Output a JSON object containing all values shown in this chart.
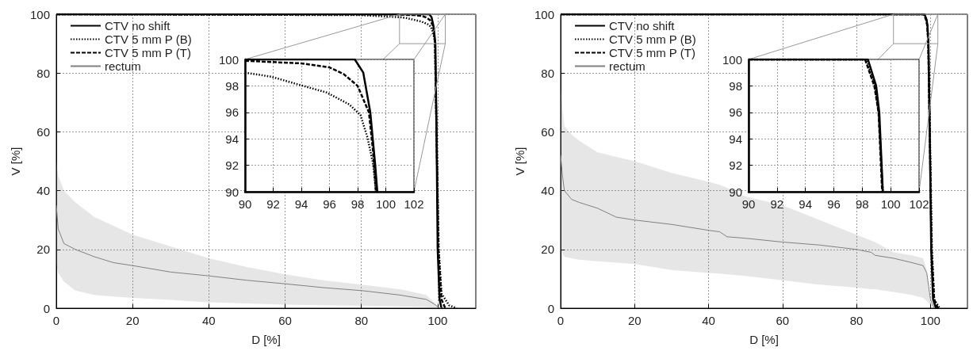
{
  "chart_data": [
    {
      "type": "line",
      "xlabel": "D [%]",
      "ylabel": "V [%]",
      "xlim": [
        0,
        110
      ],
      "ylim": [
        0,
        100
      ],
      "xticks": [
        0,
        20,
        40,
        60,
        80,
        100
      ],
      "yticks": [
        0,
        20,
        40,
        60,
        80,
        100
      ],
      "grid": true,
      "legend": "top left",
      "series": [
        {
          "name": "CTV no shift",
          "color": "#000000",
          "line_style": "solid",
          "x": [
            0,
            97.8,
            98.4,
            98.9,
            99.25,
            99.4,
            99.7,
            100,
            100.5,
            101
          ],
          "values": [
            100,
            100,
            99,
            96,
            92,
            90,
            60,
            20,
            3,
            0
          ]
        },
        {
          "name": "CTV 5 mm P (B)",
          "color": "#000000",
          "line_style": "dotted",
          "x": [
            0,
            80,
            90,
            91.85,
            93.8,
            95.8,
            97.4,
            98.2,
            98.7,
            99.1,
            99.3,
            99.7,
            100.3,
            101,
            103,
            105
          ],
          "values": [
            100,
            99.7,
            99,
            98.7,
            98.1,
            97.5,
            96.6,
            95.8,
            94.1,
            92.1,
            90,
            60,
            20,
            5,
            1,
            0
          ]
        },
        {
          "name": "CTV 5 mm P (T)",
          "color": "#000000",
          "line_style": "dashed",
          "x": [
            0,
            90,
            94,
            96,
            97,
            98,
            98.8,
            99.1,
            99.3,
            99.7,
            100.2,
            101,
            102
          ],
          "values": [
            100,
            99.9,
            99.7,
            99.4,
            98.9,
            98,
            96,
            93,
            90,
            60,
            20,
            3,
            0
          ]
        },
        {
          "name": "rectum",
          "color": "#808080",
          "line_style": "solid",
          "x": [
            0,
            0.5,
            2,
            5,
            10,
            15,
            20,
            30,
            40,
            50,
            60,
            70,
            80,
            90,
            97,
            99,
            100,
            101
          ],
          "values": [
            35,
            27,
            22,
            20,
            17.5,
            15.5,
            14.5,
            12.3,
            11,
            9.5,
            8.3,
            7,
            6,
            4.5,
            3,
            1.5,
            0.5,
            0
          ],
          "upper": [
            50,
            45,
            40,
            36,
            31,
            28,
            25,
            21,
            17,
            14,
            11.5,
            9.5,
            8,
            6.5,
            4.5,
            2,
            0.5,
            0
          ],
          "lower": [
            15,
            12,
            9,
            6,
            4.5,
            4,
            3.5,
            2.8,
            2,
            1.6,
            1.2,
            1,
            0.8,
            0.6,
            0.4,
            0.2,
            0,
            0
          ]
        }
      ]
    },
    {
      "type": "line",
      "xlim": [
        90,
        102
      ],
      "ylim": [
        90,
        100
      ],
      "xticks": [
        90,
        92,
        94,
        96,
        98,
        100,
        102
      ],
      "yticks": [
        90,
        92,
        94,
        96,
        98,
        100
      ],
      "grid": true,
      "series": [
        {
          "color": "#000000",
          "line_style": "solid",
          "x": [
            90,
            97.8,
            98.4,
            98.9,
            99.25,
            99.4
          ],
          "values": [
            100,
            100,
            99,
            96,
            92,
            90
          ]
        },
        {
          "color": "#000000",
          "line_style": "dotted",
          "x": [
            90,
            91.85,
            93.8,
            95.8,
            97.4,
            98.2,
            98.7,
            99.1,
            99.3
          ],
          "values": [
            99,
            98.7,
            98.1,
            97.5,
            96.6,
            95.8,
            94.1,
            92.1,
            90
          ]
        },
        {
          "color": "#000000",
          "line_style": "dashed",
          "x": [
            90,
            94,
            96,
            97,
            98,
            98.8,
            99.1,
            99.3
          ],
          "values": [
            99.9,
            99.7,
            99.4,
            98.9,
            98,
            96,
            93,
            90
          ]
        }
      ]
    },
    {
      "type": "line",
      "xlabel": "D [%]",
      "ylabel": "V [%]",
      "xlim": [
        0,
        110
      ],
      "ylim": [
        0,
        100
      ],
      "xticks": [
        0,
        20,
        40,
        60,
        80,
        100
      ],
      "yticks": [
        0,
        20,
        40,
        60,
        80,
        100
      ],
      "grid": true,
      "legend": "top left",
      "series": [
        {
          "name": "CTV no shift",
          "color": "#000000",
          "line_style": "solid",
          "x": [
            0,
            98.4,
            98.98,
            99.2,
            99.45,
            99.8,
            100.2,
            100.7,
            101.5
          ],
          "values": [
            100,
            100,
            98,
            96,
            90,
            60,
            20,
            3,
            0
          ]
        },
        {
          "name": "CTV 5 mm P (B)",
          "color": "#000000",
          "line_style": "dotted",
          "x": [
            0,
            98.3,
            98.9,
            99.15,
            99.45,
            99.85,
            100.4,
            101,
            102.5
          ],
          "values": [
            100,
            100,
            98,
            96,
            90,
            60,
            20,
            3,
            0
          ]
        },
        {
          "name": "CTV 5 mm P (T)",
          "color": "#000000",
          "line_style": "dashed",
          "x": [
            0,
            98.2,
            98.85,
            99.15,
            99.4,
            99.8,
            100.3,
            101,
            102
          ],
          "values": [
            100,
            100,
            98,
            96,
            90,
            60,
            20,
            3,
            0
          ]
        },
        {
          "name": "rectum",
          "color": "#808080",
          "line_style": "solid",
          "x": [
            0,
            0.5,
            1,
            3,
            5,
            10,
            15,
            20,
            30,
            40,
            43,
            45,
            50,
            60,
            70,
            80,
            84,
            85,
            90,
            95,
            98,
            99,
            100,
            101
          ],
          "values": [
            52,
            45,
            40,
            37,
            36,
            34,
            31,
            30,
            28.5,
            26.5,
            26,
            24.3,
            23.8,
            22.5,
            21.5,
            20,
            19,
            18,
            17,
            15.5,
            14.5,
            12,
            3,
            0
          ],
          "upper": [
            75,
            68,
            62,
            59,
            57,
            53,
            51.5,
            50,
            46,
            43,
            42,
            41,
            38,
            35,
            30,
            25,
            23,
            22.5,
            19,
            18,
            17,
            13,
            2,
            0
          ],
          "lower": [
            20,
            18.5,
            17.5,
            17,
            16.5,
            16,
            15.5,
            15,
            13,
            12,
            11.8,
            11.5,
            11,
            9.5,
            8,
            7,
            6.5,
            6.5,
            5.5,
            4.5,
            3.5,
            2.5,
            1,
            0
          ]
        }
      ]
    },
    {
      "type": "line",
      "xlim": [
        90,
        102
      ],
      "ylim": [
        90,
        100
      ],
      "xticks": [
        90,
        92,
        94,
        96,
        98,
        100,
        102
      ],
      "yticks": [
        90,
        92,
        94,
        96,
        98,
        100
      ],
      "grid": true,
      "series": [
        {
          "color": "#000000",
          "line_style": "solid",
          "x": [
            90,
            98.4,
            98.98,
            99.2,
            99.45
          ],
          "values": [
            100,
            100,
            98,
            96,
            90
          ]
        },
        {
          "color": "#000000",
          "line_style": "dotted",
          "x": [
            90,
            98.3,
            98.9,
            99.15,
            99.45
          ],
          "values": [
            100,
            100,
            98,
            96,
            90
          ]
        },
        {
          "color": "#000000",
          "line_style": "dashed",
          "x": [
            90,
            98.2,
            98.85,
            99.15,
            99.4
          ],
          "values": [
            100,
            100,
            98,
            96,
            90
          ]
        }
      ]
    }
  ]
}
